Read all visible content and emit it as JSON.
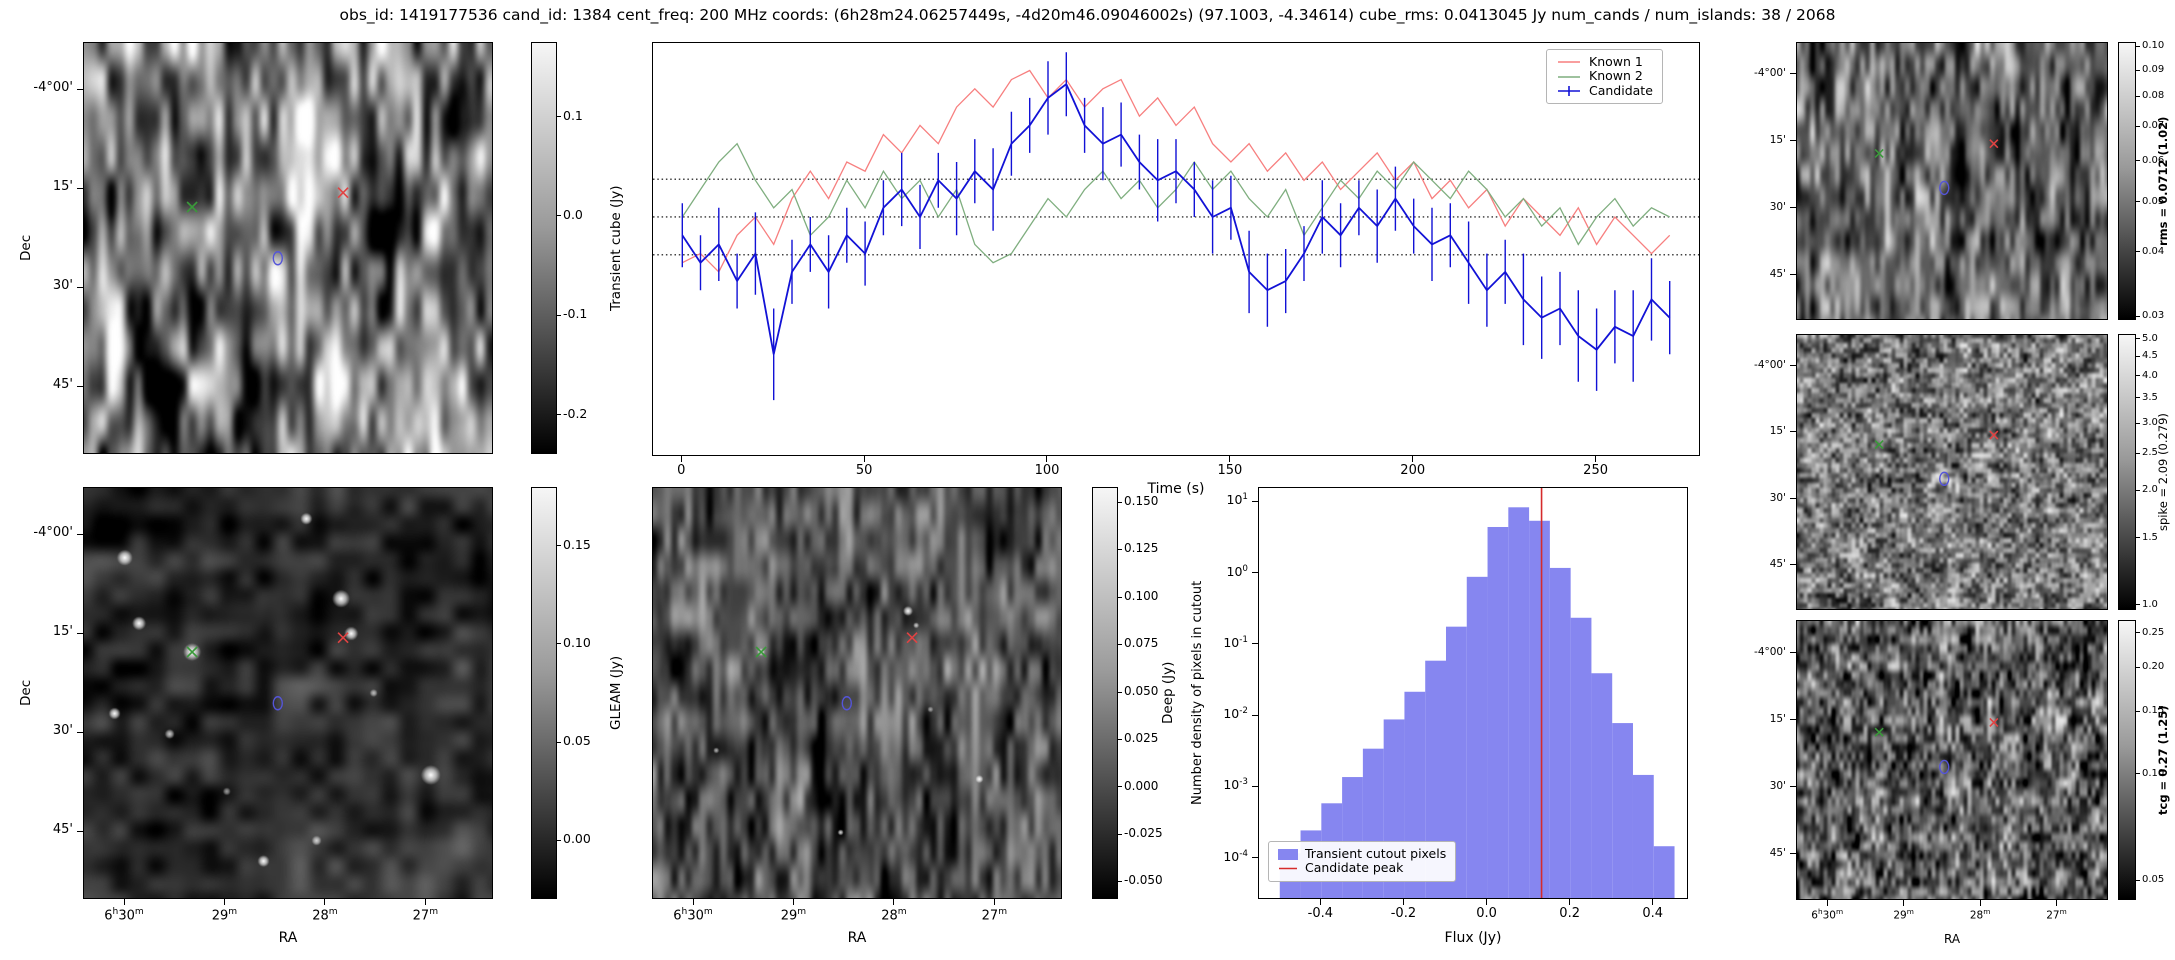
{
  "figure": {
    "title": "obs_id: 1419177536 cand_id: 1384 cent_freq: 200 MHz coords: (6h28m24.06257449s, -4d20m46.09046002s) (97.1003, -4.34614) cube_rms: 0.0413045 Jy num_cands / num_islands: 38 / 2068"
  },
  "axes": {
    "dec_label": "Dec",
    "ra_label": "RA",
    "dec_ticks": [
      "-4°00'",
      "15'",
      "30'",
      "45'"
    ],
    "ra_ticks": [
      "6h30m",
      "29m",
      "28m",
      "27m"
    ]
  },
  "markers": {
    "green": {
      "x": 0.265,
      "y": 0.4,
      "color": "#3a9a3a"
    },
    "red": {
      "x": 0.635,
      "y": 0.365,
      "color": "#e04343"
    },
    "blue": {
      "x": 0.475,
      "y": 0.525,
      "color": "#5555d8"
    }
  },
  "colorbars": {
    "transient": {
      "label": "Transient cube (Jy)",
      "scale": "linear",
      "vmin": -0.24,
      "vmax": 0.175,
      "ticks": [
        0.1,
        0.0,
        -0.1,
        -0.2
      ],
      "tick_labels": [
        "0.1",
        "0.0",
        "-0.1",
        "-0.2"
      ]
    },
    "gleam": {
      "label": "GLEAM (Jy)",
      "scale": "linear",
      "vmin": -0.03,
      "vmax": 0.18,
      "ticks": [
        0.15,
        0.1,
        0.05,
        0.0
      ],
      "tick_labels": [
        "0.15",
        "0.10",
        "0.05",
        "0.00"
      ]
    },
    "deep": {
      "label": "Deep (Jy)",
      "scale": "linear",
      "vmin": -0.059,
      "vmax": 0.158,
      "ticks": [
        0.15,
        0.125,
        0.1,
        0.075,
        0.05,
        0.025,
        0.0,
        -0.025,
        -0.05
      ],
      "tick_labels": [
        "0.150",
        "0.125",
        "0.100",
        "0.075",
        "0.050",
        "0.025",
        "0.000",
        "-0.025",
        "-0.050"
      ]
    },
    "rms": {
      "label": "rms = 0.0712 (1.02)",
      "scale": "log",
      "vmin": 0.0295,
      "vmax": 0.102,
      "ticks": [
        0.1,
        0.09,
        0.08,
        0.07,
        0.06,
        0.05,
        0.04,
        0.03
      ],
      "tick_labels": [
        "0.10",
        "0.09",
        "0.08",
        "0.07",
        "0.06",
        "0.05",
        "0.04",
        "0.03"
      ],
      "emphasis": true
    },
    "spike": {
      "label": "spike = 2.09 (0.279)",
      "scale": "log",
      "vmin": 0.97,
      "vmax": 5.15,
      "ticks": [
        5.0,
        4.5,
        4.0,
        3.5,
        3.0,
        2.5,
        2.0,
        1.5,
        1.0
      ],
      "tick_labels": [
        "5.0",
        "4.5",
        "4.0",
        "3.5",
        "3.0",
        "2.5",
        "2.0",
        "1.5",
        "1.0"
      ],
      "emphasis": false
    },
    "tcg": {
      "label": "tcg = 0.27 (1.25)",
      "scale": "log",
      "vmin": 0.044,
      "vmax": 0.272,
      "ticks": [
        0.25,
        0.2,
        0.15,
        0.1,
        0.05
      ],
      "tick_labels": [
        "0.25",
        "0.20",
        "0.15",
        "0.10",
        "0.05"
      ],
      "emphasis": true
    }
  },
  "chart_data": [
    {
      "type": "line",
      "title": "",
      "xlabel": "Time (s)",
      "ylabel": "",
      "xlim": [
        -8,
        278
      ],
      "ylim": [
        -0.26,
        0.19
      ],
      "x_ticks": [
        0,
        50,
        100,
        150,
        200,
        250
      ],
      "x_tick_labels": [
        "0",
        "50",
        "100",
        "150",
        "200",
        "250"
      ],
      "threshold_lines": [
        0.0413,
        0.0,
        -0.0413
      ],
      "legend_position": "upper right",
      "x": [
        0,
        5,
        10,
        15,
        20,
        25,
        30,
        35,
        40,
        45,
        50,
        55,
        60,
        65,
        70,
        75,
        80,
        85,
        90,
        95,
        100,
        105,
        110,
        115,
        120,
        125,
        130,
        135,
        140,
        145,
        150,
        155,
        160,
        165,
        170,
        175,
        180,
        185,
        190,
        195,
        200,
        205,
        210,
        215,
        220,
        225,
        230,
        235,
        240,
        245,
        250,
        255,
        260,
        265,
        270
      ],
      "series": [
        {
          "name": "Known 1",
          "color": "#f77f7f",
          "values": [
            -0.05,
            -0.04,
            -0.06,
            -0.02,
            0.0,
            -0.03,
            0.02,
            0.05,
            0.02,
            0.06,
            0.05,
            0.09,
            0.07,
            0.1,
            0.08,
            0.12,
            0.14,
            0.12,
            0.15,
            0.16,
            0.13,
            0.15,
            0.12,
            0.14,
            0.15,
            0.11,
            0.13,
            0.1,
            0.12,
            0.08,
            0.06,
            0.08,
            0.05,
            0.07,
            0.04,
            0.06,
            0.03,
            0.05,
            0.07,
            0.04,
            0.06,
            0.02,
            0.04,
            0.01,
            0.03,
            -0.01,
            0.02,
            0.0,
            -0.02,
            0.01,
            -0.03,
            0.0,
            -0.02,
            -0.04,
            -0.02
          ]
        },
        {
          "name": "Known 2",
          "color": "#7fae7f",
          "values": [
            0.0,
            0.03,
            0.06,
            0.08,
            0.04,
            0.01,
            0.03,
            -0.02,
            0.0,
            0.04,
            0.01,
            0.05,
            0.02,
            0.04,
            0.0,
            0.03,
            -0.03,
            -0.05,
            -0.04,
            -0.01,
            0.02,
            0.0,
            0.03,
            0.05,
            0.02,
            0.04,
            0.01,
            0.03,
            0.06,
            0.03,
            0.05,
            0.02,
            0.0,
            0.03,
            -0.02,
            0.01,
            0.04,
            0.02,
            0.05,
            0.03,
            0.06,
            0.04,
            0.02,
            0.05,
            0.03,
            0.0,
            0.02,
            -0.01,
            0.01,
            -0.03,
            0.0,
            0.02,
            -0.01,
            0.01,
            0.0
          ]
        },
        {
          "name": "Candidate",
          "color": "#1212d6",
          "values": [
            -0.02,
            -0.05,
            -0.03,
            -0.07,
            -0.04,
            -0.15,
            -0.06,
            -0.03,
            -0.06,
            -0.02,
            -0.04,
            0.01,
            0.03,
            0.0,
            0.04,
            0.02,
            0.05,
            0.03,
            0.08,
            0.1,
            0.13,
            0.145,
            0.1,
            0.08,
            0.09,
            0.06,
            0.04,
            0.05,
            0.03,
            0.0,
            0.01,
            -0.06,
            -0.08,
            -0.07,
            -0.04,
            0.0,
            -0.02,
            0.01,
            -0.01,
            0.02,
            -0.01,
            -0.03,
            -0.02,
            -0.05,
            -0.08,
            -0.06,
            -0.09,
            -0.11,
            -0.1,
            -0.13,
            -0.145,
            -0.12,
            -0.13,
            -0.09,
            -0.11
          ],
          "errors": [
            0.035,
            0.03,
            0.04,
            0.03,
            0.045,
            0.05,
            0.035,
            0.03,
            0.04,
            0.03,
            0.035,
            0.03,
            0.04,
            0.035,
            0.03,
            0.04,
            0.035,
            0.045,
            0.035,
            0.03,
            0.04,
            0.035,
            0.03,
            0.04,
            0.035,
            0.03,
            0.045,
            0.035,
            0.03,
            0.04,
            0.035,
            0.045,
            0.04,
            0.035,
            0.03,
            0.04,
            0.035,
            0.03,
            0.04,
            0.035,
            0.03,
            0.04,
            0.035,
            0.045,
            0.04,
            0.035,
            0.05,
            0.045,
            0.04,
            0.05,
            0.045,
            0.04,
            0.05,
            0.045,
            0.04
          ]
        }
      ]
    },
    {
      "type": "bar",
      "xlabel": "Flux (Jy)",
      "ylabel": "Number density of pixels in cutout",
      "xlim": [
        -0.55,
        0.48
      ],
      "x_ticks": [
        -0.4,
        -0.2,
        0.0,
        0.2,
        0.4
      ],
      "x_tick_labels": [
        "-0.4",
        "-0.2",
        "0.0",
        "0.2",
        "0.4"
      ],
      "yscale": "log",
      "ylim_log_exp": [
        -4.55,
        1.2
      ],
      "y_tick_exponents": [
        1,
        0,
        -1,
        -2,
        -3,
        -4
      ],
      "bin_edges": [
        -0.5,
        -0.45,
        -0.4,
        -0.35,
        -0.3,
        -0.25,
        -0.2,
        -0.15,
        -0.1,
        -0.05,
        0.0,
        0.05,
        0.1,
        0.15,
        0.2,
        0.25,
        0.3,
        0.35,
        0.4,
        0.45
      ],
      "densities": [
        0.00012,
        0.00025,
        0.0006,
        0.0014,
        0.0035,
        0.009,
        0.022,
        0.06,
        0.18,
        0.9,
        4.5,
        8.5,
        5.5,
        1.2,
        0.24,
        0.04,
        0.008,
        0.0015,
        0.00015
      ],
      "candidate_peak": 0.13,
      "bar_color": "#8686f0",
      "line_color": "#d62b2b",
      "legend": [
        "Transient cutout pixels",
        "Candidate peak"
      ]
    }
  ]
}
